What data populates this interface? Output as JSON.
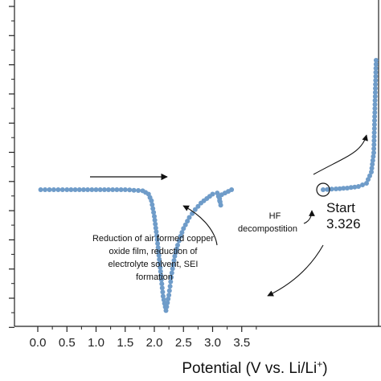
{
  "chart_data": {
    "type": "scatter",
    "title": "",
    "xlabel": "Potential (V vs. Li/Li+)",
    "ylabel": "",
    "xlim": [
      -0.3,
      3.8
    ],
    "xticks": [
      "0.0",
      "0.5",
      "1.0",
      "1.5",
      "2.0",
      "2.5",
      "3.0",
      "3.5"
    ],
    "grid": false,
    "series": [
      {
        "color": "#6f9cc9",
        "x": [
          3.326,
          3.1,
          3.14,
          3.12,
          3.08,
          3.0,
          2.9,
          2.8,
          2.7,
          2.6,
          2.5,
          2.45,
          2.4,
          2.35,
          2.3,
          2.25,
          2.2,
          2.15,
          2.1,
          2.05,
          2.0,
          1.95,
          1.9,
          1.8,
          1.5,
          1.0,
          0.5,
          0.05
        ],
        "y": [
          0,
          -0.6,
          -1.4,
          -0.8,
          -0.3,
          -0.4,
          -0.8,
          -1.2,
          -1.8,
          -2.5,
          -3.5,
          -4.2,
          -5.0,
          -6.0,
          -7.5,
          -9.5,
          -10.9,
          -9.6,
          -7.0,
          -4.5,
          -2.4,
          -1.0,
          -0.4,
          -0.1,
          0,
          0,
          0,
          0
        ]
      }
    ],
    "annotations": {
      "air_film": "Reduction of air formed copper oxide film, reduction of electrolyte solvent, SEI formation",
      "hf_line1": "HF",
      "hf_line2": "decompostition",
      "start_label": "Start",
      "start_value": "3.326"
    }
  }
}
